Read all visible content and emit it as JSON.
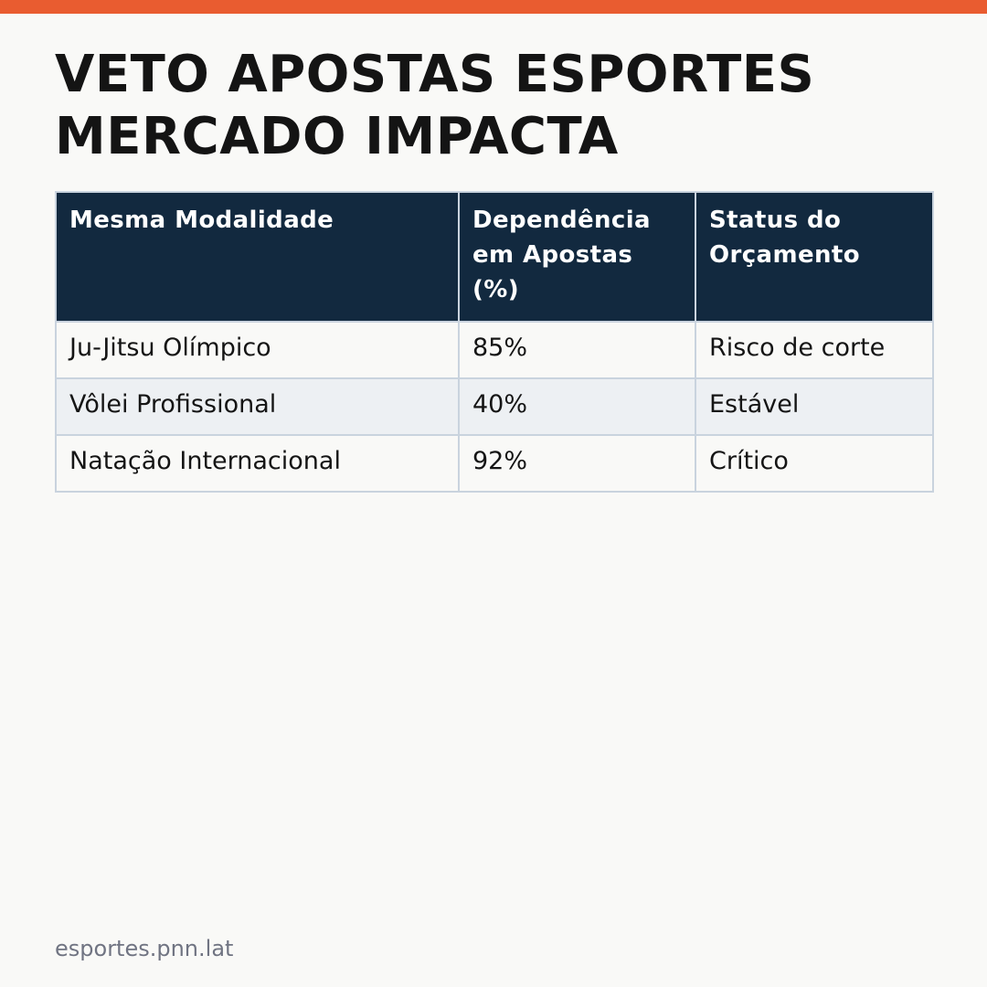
{
  "colors": {
    "accent_bar": "#e95c30",
    "header_bg": "#12293f",
    "row_alt_bg": "#edf0f3",
    "border": "#c9d3de"
  },
  "headline": {
    "line1": "VETO APOSTAS ESPORTES",
    "line2": "MERCADO IMPACTA"
  },
  "table": {
    "headers": [
      "Mesma Modalidade",
      "Dependência em Apostas (%)",
      "Status do Orçamento"
    ],
    "rows": [
      [
        "Ju-Jitsu Olímpico",
        "85%",
        "Risco de corte"
      ],
      [
        "Vôlei Profissional",
        "40%",
        "Estável"
      ],
      [
        "Natação Internacional",
        "92%",
        "Crítico"
      ]
    ]
  },
  "footer": {
    "domain": "esportes.pnn.lat"
  }
}
